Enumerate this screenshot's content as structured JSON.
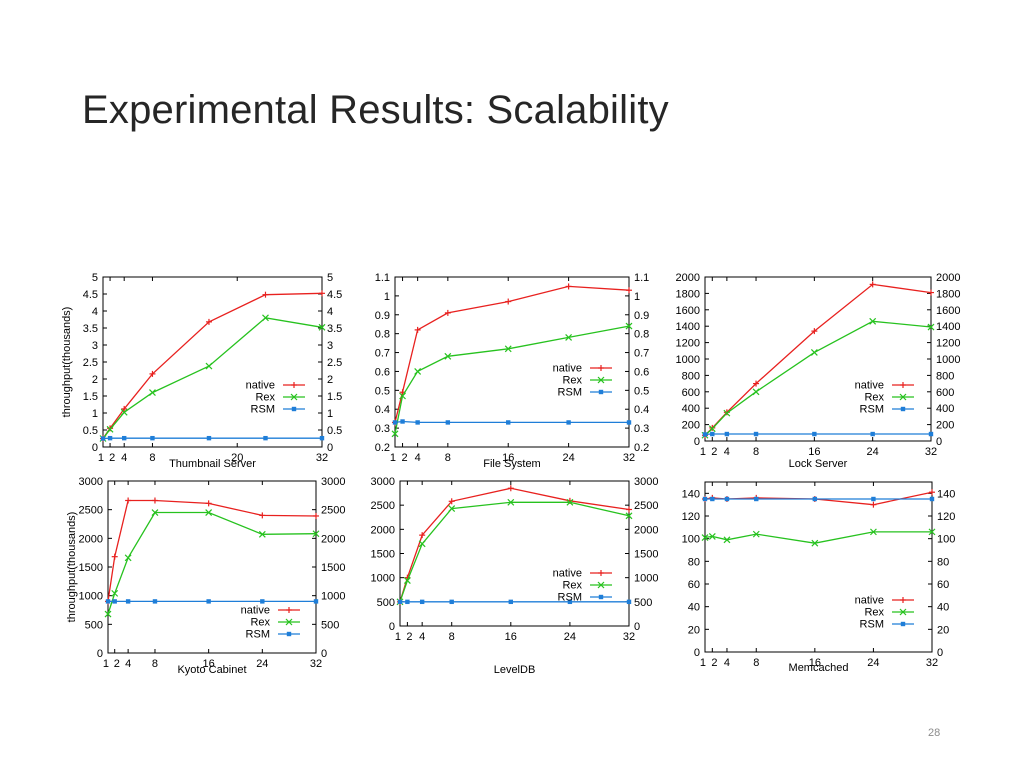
{
  "slide": {
    "title": "Experimental Results: Scalability",
    "page_number": "28"
  },
  "chart_data": [
    {
      "type": "line",
      "title": "Thumbnail Server",
      "xlabel": "Thumbnail Server",
      "ylabel": "throughput(thousands)",
      "x_ticks": [
        "1",
        "2",
        "4",
        "8",
        "20",
        "32"
      ],
      "x_tick_values": [
        1,
        2,
        4,
        8,
        20,
        32
      ],
      "xlim": [
        1,
        32
      ],
      "ylim": [
        0,
        5
      ],
      "y_ticks": [
        "0",
        "0.5",
        "1",
        "1.5",
        "2",
        "2.5",
        "3",
        "3.5",
        "4",
        "4.5",
        "5"
      ],
      "y_tick_values": [
        0,
        0.5,
        1,
        1.5,
        2,
        2.5,
        3,
        3.5,
        4,
        4.5,
        5
      ],
      "right_axis_mirrors_left": true,
      "legend_position": "right-middle",
      "series": [
        {
          "name": "native",
          "color": "#e8211f",
          "marker": "plus",
          "x": [
            1,
            2,
            4,
            8,
            16,
            24,
            32
          ],
          "values": [
            0.25,
            0.55,
            1.12,
            2.15,
            3.68,
            4.48,
            4.52
          ]
        },
        {
          "name": "Rex",
          "color": "#27c21f",
          "marker": "cross",
          "x": [
            1,
            2,
            4,
            8,
            16,
            24,
            32
          ],
          "values": [
            0.25,
            0.52,
            1.02,
            1.6,
            2.38,
            3.8,
            3.52
          ]
        },
        {
          "name": "RSM",
          "color": "#1f7ed8",
          "marker": "square",
          "x": [
            1,
            2,
            4,
            8,
            16,
            24,
            32
          ],
          "values": [
            0.25,
            0.26,
            0.26,
            0.26,
            0.26,
            0.26,
            0.26
          ]
        }
      ]
    },
    {
      "type": "line",
      "title": "File System",
      "xlabel": "File System",
      "ylabel": "",
      "x_ticks": [
        "1",
        "2",
        "4",
        "8",
        "16",
        "24",
        "32"
      ],
      "x_tick_values": [
        1,
        2,
        4,
        8,
        16,
        24,
        32
      ],
      "xlim": [
        1,
        32
      ],
      "ylim": [
        0.2,
        1.1
      ],
      "y_ticks": [
        "0.2",
        "0.3",
        "0.4",
        "0.5",
        "0.6",
        "0.7",
        "0.8",
        "0.9",
        "1",
        "1.1"
      ],
      "y_tick_values": [
        0.2,
        0.3,
        0.4,
        0.5,
        0.6,
        0.7,
        0.8,
        0.9,
        1.0,
        1.1
      ],
      "right_axis_mirrors_left": true,
      "legend_position": "right-middle",
      "series": [
        {
          "name": "native",
          "color": "#e8211f",
          "marker": "plus",
          "x": [
            1,
            2,
            4,
            8,
            16,
            24,
            32
          ],
          "values": [
            0.33,
            0.49,
            0.82,
            0.91,
            0.97,
            1.05,
            1.03
          ]
        },
        {
          "name": "Rex",
          "color": "#27c21f",
          "marker": "cross",
          "x": [
            1,
            2,
            4,
            8,
            16,
            24,
            32
          ],
          "values": [
            0.27,
            0.47,
            0.6,
            0.68,
            0.72,
            0.78,
            0.84
          ]
        },
        {
          "name": "RSM",
          "color": "#1f7ed8",
          "marker": "square",
          "x": [
            1,
            2,
            4,
            8,
            16,
            24,
            32
          ],
          "values": [
            0.33,
            0.335,
            0.33,
            0.33,
            0.33,
            0.33,
            0.33
          ]
        }
      ]
    },
    {
      "type": "line",
      "title": "Lock Server",
      "xlabel": "Lock Server",
      "ylabel": "",
      "x_ticks": [
        "1",
        "2",
        "4",
        "8",
        "16",
        "24",
        "32"
      ],
      "x_tick_values": [
        1,
        2,
        4,
        8,
        16,
        24,
        32
      ],
      "xlim": [
        1,
        32
      ],
      "ylim": [
        0,
        2000
      ],
      "y_ticks": [
        "0",
        "200",
        "400",
        "600",
        "800",
        "1000",
        "1200",
        "1400",
        "1600",
        "1800",
        "2000"
      ],
      "y_tick_values": [
        0,
        200,
        400,
        600,
        800,
        1000,
        1200,
        1400,
        1600,
        1800,
        2000
      ],
      "right_axis_mirrors_left": true,
      "legend_position": "right-middle",
      "series": [
        {
          "name": "native",
          "color": "#e8211f",
          "marker": "plus",
          "x": [
            1,
            2,
            4,
            8,
            16,
            24,
            32
          ],
          "values": [
            70,
            160,
            350,
            700,
            1340,
            1910,
            1810
          ]
        },
        {
          "name": "Rex",
          "color": "#27c21f",
          "marker": "cross",
          "x": [
            1,
            2,
            4,
            8,
            16,
            24,
            32
          ],
          "values": [
            70,
            150,
            340,
            600,
            1080,
            1460,
            1390
          ]
        },
        {
          "name": "RSM",
          "color": "#1f7ed8",
          "marker": "square",
          "x": [
            1,
            2,
            4,
            8,
            16,
            24,
            32
          ],
          "values": [
            80,
            85,
            85,
            85,
            85,
            85,
            85
          ]
        }
      ]
    },
    {
      "type": "line",
      "title": "Kyoto Cabinet",
      "xlabel": "Kyoto Cabinet",
      "ylabel": "throughput(thousands)",
      "x_ticks": [
        "1",
        "2",
        "4",
        "8",
        "16",
        "24",
        "32"
      ],
      "x_tick_values": [
        1,
        2,
        4,
        8,
        16,
        24,
        32
      ],
      "xlim": [
        1,
        32
      ],
      "ylim": [
        0,
        3000
      ],
      "y_ticks": [
        "0",
        "500",
        "1000",
        "1500",
        "2000",
        "2500",
        "3000"
      ],
      "y_tick_values": [
        0,
        500,
        1000,
        1500,
        2000,
        2500,
        3000
      ],
      "right_axis_mirrors_left": true,
      "legend_position": "bottom-right",
      "series": [
        {
          "name": "native",
          "color": "#e8211f",
          "marker": "plus",
          "x": [
            1,
            2,
            4,
            8,
            16,
            24,
            32
          ],
          "values": [
            900,
            1680,
            2660,
            2660,
            2610,
            2400,
            2390
          ]
        },
        {
          "name": "Rex",
          "color": "#27c21f",
          "marker": "cross",
          "x": [
            1,
            2,
            4,
            8,
            16,
            24,
            32
          ],
          "values": [
            680,
            1040,
            1660,
            2450,
            2450,
            2070,
            2080
          ]
        },
        {
          "name": "RSM",
          "color": "#1f7ed8",
          "marker": "square",
          "x": [
            1,
            2,
            4,
            8,
            16,
            24,
            32
          ],
          "values": [
            900,
            900,
            900,
            900,
            900,
            900,
            900
          ]
        }
      ]
    },
    {
      "type": "line",
      "title": "LevelDB",
      "xlabel": "LevelDB",
      "ylabel": "",
      "x_ticks": [
        "1",
        "2",
        "4",
        "8",
        "16",
        "24",
        "32"
      ],
      "x_tick_values": [
        1,
        2,
        4,
        8,
        16,
        24,
        32
      ],
      "xlim": [
        1,
        32
      ],
      "ylim": [
        0,
        3000
      ],
      "y_ticks": [
        "0",
        "500",
        "1000",
        "1500",
        "2000",
        "2500",
        "3000"
      ],
      "y_tick_values": [
        0,
        500,
        1000,
        1500,
        2000,
        2500,
        3000
      ],
      "right_axis_mirrors_left": true,
      "legend_position": "right-middle",
      "series": [
        {
          "name": "native",
          "color": "#e8211f",
          "marker": "plus",
          "x": [
            1,
            2,
            4,
            8,
            16,
            24,
            32
          ],
          "values": [
            500,
            1000,
            1880,
            2580,
            2850,
            2590,
            2410
          ]
        },
        {
          "name": "Rex",
          "color": "#27c21f",
          "marker": "cross",
          "x": [
            1,
            2,
            4,
            8,
            16,
            24,
            32
          ],
          "values": [
            500,
            940,
            1700,
            2430,
            2560,
            2560,
            2280
          ]
        },
        {
          "name": "RSM",
          "color": "#1f7ed8",
          "marker": "square",
          "x": [
            1,
            2,
            4,
            8,
            16,
            24,
            32
          ],
          "values": [
            500,
            500,
            500,
            500,
            500,
            500,
            500
          ]
        }
      ]
    },
    {
      "type": "line",
      "title": "Memcached",
      "xlabel": "Memcached",
      "ylabel": "",
      "x_ticks": [
        "1",
        "2",
        "4",
        "8",
        "16",
        "24",
        "32"
      ],
      "x_tick_values": [
        1,
        2,
        4,
        8,
        16,
        24,
        32
      ],
      "xlim": [
        1,
        32
      ],
      "ylim": [
        0,
        150
      ],
      "y_ticks": [
        "0",
        "20",
        "40",
        "60",
        "80",
        "100",
        "120",
        "140"
      ],
      "y_tick_values": [
        0,
        20,
        40,
        60,
        80,
        100,
        120,
        140
      ],
      "right_axis_mirrors_left": true,
      "legend_position": "bottom-right",
      "series": [
        {
          "name": "native",
          "color": "#e8211f",
          "marker": "plus",
          "x": [
            1,
            2,
            4,
            8,
            16,
            24,
            32
          ],
          "values": [
            135,
            136,
            135,
            136,
            135,
            130,
            141
          ]
        },
        {
          "name": "Rex",
          "color": "#27c21f",
          "marker": "cross",
          "x": [
            1,
            2,
            4,
            8,
            16,
            24,
            32
          ],
          "values": [
            101,
            102,
            99,
            104,
            96,
            106,
            106
          ]
        },
        {
          "name": "RSM",
          "color": "#1f7ed8",
          "marker": "square",
          "x": [
            1,
            2,
            4,
            8,
            16,
            24,
            32
          ],
          "values": [
            135,
            135,
            135,
            135,
            135,
            135,
            135
          ]
        }
      ]
    }
  ]
}
